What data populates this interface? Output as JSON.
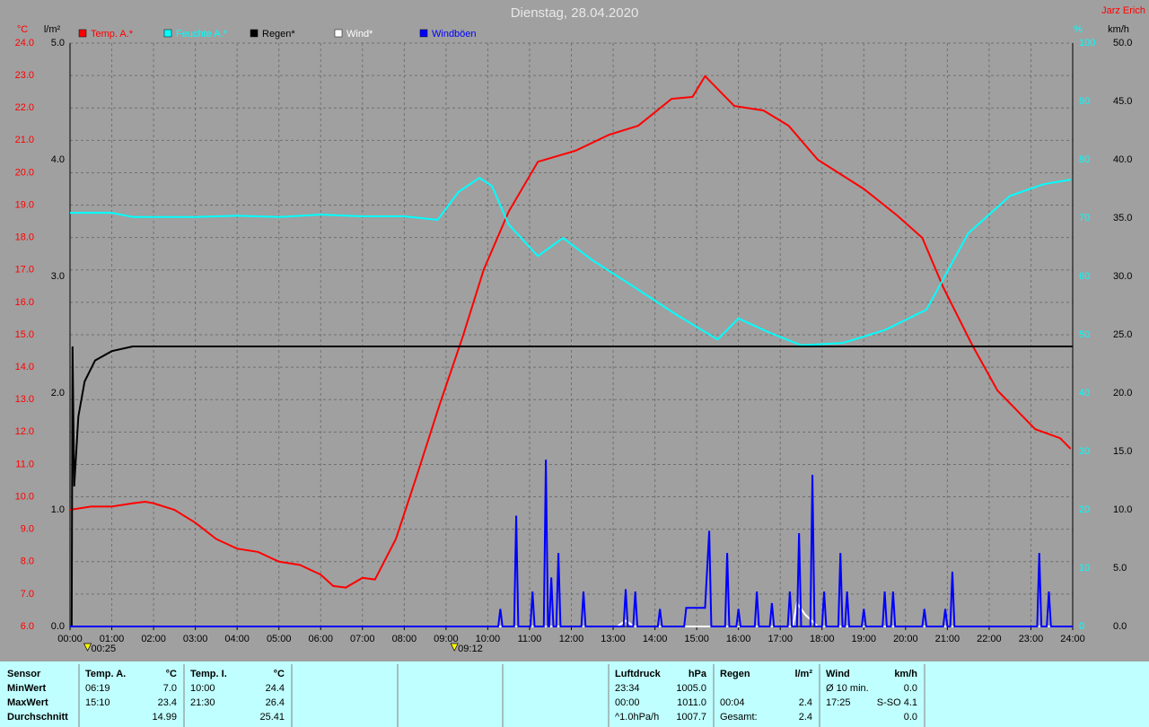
{
  "chart_data": {
    "type": "line",
    "title": "Dienstag, 28.04.2020",
    "author": "Jarz Erich",
    "ylabel": "°C",
    "y3label": "l/m²",
    "y2label": "%",
    "y4label": "km/h",
    "xlim": [
      0,
      24
    ],
    "xticks": [
      {
        "value": 0,
        "label": "00:00"
      },
      {
        "value": 1,
        "label": "01:00"
      },
      {
        "value": 2,
        "label": "02:00"
      },
      {
        "value": 3,
        "label": "03:00"
      },
      {
        "value": 4,
        "label": "04:00"
      },
      {
        "value": 5,
        "label": "05:00"
      },
      {
        "value": 6,
        "label": "06:00"
      },
      {
        "value": 7,
        "label": "07:00"
      },
      {
        "value": 8,
        "label": "08:00"
      },
      {
        "value": 9,
        "label": "09:00"
      },
      {
        "value": 10,
        "label": "10:00"
      },
      {
        "value": 11,
        "label": "11:00"
      },
      {
        "value": 12,
        "label": "12:00"
      },
      {
        "value": 13,
        "label": "13:00"
      },
      {
        "value": 14,
        "label": "14:00"
      },
      {
        "value": 15,
        "label": "15:00"
      },
      {
        "value": 16,
        "label": "16:00"
      },
      {
        "value": 17,
        "label": "17:00"
      },
      {
        "value": 18,
        "label": "18:00"
      },
      {
        "value": 19,
        "label": "19:00"
      },
      {
        "value": 20,
        "label": "20:00"
      },
      {
        "value": 21,
        "label": "21:00"
      },
      {
        "value": 22,
        "label": "22:00"
      },
      {
        "value": 23,
        "label": "23:00"
      },
      {
        "value": 24,
        "label": "24:00"
      }
    ],
    "ylim": [
      6,
      24
    ],
    "yticks": [
      {
        "value": 24,
        "label": "24.0"
      },
      {
        "value": 23,
        "label": "23.0"
      },
      {
        "value": 22,
        "label": "22.0"
      },
      {
        "value": 21,
        "label": "21.0"
      },
      {
        "value": 20,
        "label": "20.0"
      },
      {
        "value": 19,
        "label": "19.0"
      },
      {
        "value": 18,
        "label": "18.0"
      },
      {
        "value": 17,
        "label": "17.0"
      },
      {
        "value": 16,
        "label": "16.0"
      },
      {
        "value": 15,
        "label": "15.0"
      },
      {
        "value": 14,
        "label": "14.0"
      },
      {
        "value": 13,
        "label": "13.0"
      },
      {
        "value": 12,
        "label": "12.0"
      },
      {
        "value": 11,
        "label": "11.0"
      },
      {
        "value": 10,
        "label": "10.0"
      },
      {
        "value": 9,
        "label": "9.0"
      },
      {
        "value": 8,
        "label": "8.0"
      },
      {
        "value": 7,
        "label": "7.0"
      },
      {
        "value": 6,
        "label": "6.0"
      }
    ],
    "y3lim": [
      0,
      5
    ],
    "y3ticks": [
      {
        "value": 5,
        "label": "5.0"
      },
      {
        "value": 4,
        "label": "4.0"
      },
      {
        "value": 3,
        "label": "3.0"
      },
      {
        "value": 2,
        "label": "2.0"
      },
      {
        "value": 1,
        "label": "1.0"
      },
      {
        "value": 0,
        "label": "0.0"
      }
    ],
    "y2lim": [
      0,
      100
    ],
    "y2ticks": [
      100,
      90,
      80,
      70,
      60,
      50,
      40,
      30,
      20,
      10,
      0
    ],
    "y4lim": [
      0,
      50
    ],
    "y4ticks": [
      {
        "value": 50,
        "label": "50.0"
      },
      {
        "value": 45,
        "label": "45.0"
      },
      {
        "value": 40,
        "label": "40.0"
      },
      {
        "value": 35,
        "label": "35.0"
      },
      {
        "value": 30,
        "label": "30.0"
      },
      {
        "value": 25,
        "label": "25.0"
      },
      {
        "value": 20,
        "label": "20.0"
      },
      {
        "value": 15,
        "label": "15.0"
      },
      {
        "value": 10,
        "label": "10.0"
      },
      {
        "value": 5,
        "label": "5.0"
      },
      {
        "value": 0,
        "label": "0.0"
      }
    ],
    "grid": true,
    "series": [
      {
        "name": "Temp. A.*",
        "color": "#ff0000",
        "axis": "y",
        "x": [
          0,
          0.5,
          1.0,
          1.5,
          1.8,
          2.0,
          2.5,
          3.0,
          3.5,
          4.0,
          4.5,
          5.0,
          5.5,
          6.0,
          6.3,
          6.6,
          7.0,
          7.3,
          7.8,
          8.3,
          8.85,
          9.4,
          9.9,
          10.5,
          11.2,
          12.1,
          12.9,
          13.6,
          14.4,
          14.9,
          15.2,
          15.9,
          16.6,
          17.2,
          17.9,
          19.0,
          19.8,
          20.4,
          20.9,
          21.6,
          22.2,
          23.1,
          23.7,
          23.95
        ],
        "values": [
          9.6,
          9.7,
          9.7,
          9.8,
          9.85,
          9.8,
          9.6,
          9.2,
          8.7,
          8.4,
          8.3,
          8.0,
          7.9,
          7.6,
          7.25,
          7.2,
          7.5,
          7.45,
          8.7,
          10.65,
          12.86,
          14.94,
          17.0,
          18.8,
          20.34,
          20.68,
          21.17,
          21.45,
          22.28,
          22.34,
          22.98,
          22.06,
          21.92,
          21.45,
          20.4,
          19.5,
          18.68,
          17.99,
          16.47,
          14.67,
          13.28,
          12.09,
          11.81,
          11.48
        ]
      },
      {
        "name": "Feuchte A.*",
        "color": "#00ffff",
        "axis": "y2",
        "x": [
          0,
          1.0,
          1.5,
          3.0,
          4.0,
          5.0,
          6.0,
          7.0,
          8.0,
          8.8,
          9.3,
          9.8,
          10.1,
          10.5,
          11.2,
          11.8,
          12.5,
          13.5,
          14.5,
          15.5,
          16.0,
          16.7,
          17.5,
          18.5,
          19.5,
          20.5,
          21.5,
          22.5,
          23.3,
          23.95
        ],
        "values": [
          70.9,
          70.9,
          70.2,
          70.2,
          70.4,
          70.2,
          70.6,
          70.3,
          70.3,
          69.7,
          74.5,
          76.9,
          75.5,
          68.9,
          63.5,
          66.6,
          62.8,
          58.2,
          53.5,
          49.2,
          52.8,
          50.5,
          48.2,
          48.6,
          50.8,
          54.3,
          67.4,
          73.8,
          75.8,
          76.6
        ]
      },
      {
        "name": "Regen*",
        "color": "#000000",
        "axis": "y3",
        "x": [
          0,
          0.04,
          0.06,
          0.1,
          0.2,
          0.35,
          0.6,
          1.0,
          1.5,
          24
        ],
        "values": [
          0,
          0,
          2.4,
          1.2,
          1.8,
          2.1,
          2.28,
          2.36,
          2.4,
          2.4
        ]
      },
      {
        "name": "Wind*",
        "color": "#ffffff",
        "axis": "y4",
        "x": [
          0,
          13.1,
          13.3,
          13.5,
          17.3,
          17.4,
          17.6,
          17.9,
          24
        ],
        "values": [
          0,
          0,
          0.5,
          0,
          0,
          2,
          1,
          0,
          0
        ]
      },
      {
        "name": "Windböen",
        "color": "#0000ff",
        "axis": "y4",
        "x": [
          0,
          10.25,
          10.3,
          10.35,
          10.63,
          10.68,
          10.73,
          11.02,
          11.07,
          11.12,
          11.34,
          11.39,
          11.44,
          11.47,
          11.52,
          11.57,
          11.64,
          11.69,
          11.74,
          12.24,
          12.29,
          12.34,
          13.25,
          13.3,
          13.35,
          13.48,
          13.53,
          13.58,
          14.07,
          14.12,
          14.17,
          14.7,
          14.75,
          15.2,
          15.3,
          15.35,
          15.68,
          15.73,
          15.78,
          15.95,
          16.0,
          16.05,
          16.39,
          16.44,
          16.49,
          16.75,
          16.8,
          16.85,
          17.18,
          17.23,
          17.28,
          17.4,
          17.45,
          17.5,
          17.72,
          17.77,
          17.82,
          18.0,
          18.05,
          18.1,
          18.39,
          18.44,
          18.49,
          18.55,
          18.6,
          18.65,
          18.95,
          19.0,
          19.05,
          19.45,
          19.5,
          19.55,
          19.65,
          19.7,
          19.75,
          20.4,
          20.45,
          20.5,
          20.9,
          20.95,
          21.0,
          21.07,
          21.12,
          21.17,
          23.15,
          23.2,
          23.25,
          23.38,
          23.43,
          23.48,
          24
        ],
        "values": [
          0,
          0,
          1.5,
          0,
          0,
          9.5,
          0,
          0,
          3,
          0,
          0,
          14.3,
          0,
          0,
          4.2,
          0,
          0,
          6.3,
          0,
          0,
          3,
          0,
          0,
          3.2,
          0,
          0,
          3,
          0,
          0,
          1.5,
          0,
          0,
          1.6,
          1.6,
          8.2,
          0,
          0,
          6.3,
          0,
          0,
          1.5,
          0,
          0,
          3,
          0,
          0,
          2,
          0,
          0,
          3,
          0,
          0,
          8,
          0,
          0,
          13,
          0,
          0,
          3,
          0,
          0,
          6.3,
          0,
          0,
          3,
          0,
          0,
          1.5,
          0,
          0,
          3,
          0,
          0,
          3,
          0,
          0,
          1.5,
          0,
          0,
          1.5,
          0,
          0,
          4.7,
          0,
          0,
          6.3,
          0,
          0,
          3,
          0,
          0
        ]
      }
    ],
    "markers": [
      {
        "x": 0.42,
        "label": "00:25"
      },
      {
        "x": 9.2,
        "label": "09:12"
      }
    ]
  },
  "table": {
    "sensor": {
      "header": "Sensor",
      "rows": [
        "MinWert",
        "MaxWert",
        "Durchschnitt"
      ]
    },
    "columns": [
      {
        "header": "Temp. A.",
        "unit": "°C",
        "rows": [
          [
            "06:19",
            "7.0"
          ],
          [
            "15:10",
            "23.4"
          ],
          [
            "14.99"
          ]
        ]
      },
      {
        "header": "Temp. I.",
        "unit": "°C",
        "rows": [
          [
            "10:00",
            "24.4"
          ],
          [
            "21:30",
            "26.4"
          ],
          [
            "25.41"
          ]
        ]
      },
      {
        "header": "Luftdruck",
        "unit": "hPa",
        "rows": [
          [
            "23:34",
            "1005.0"
          ],
          [
            "00:00",
            "1011.0"
          ],
          [
            "^1.0hPa/h",
            "1007.7"
          ]
        ]
      },
      {
        "header": "Regen",
        "unit": "l/m²",
        "rows": [
          [],
          [
            "00:04",
            "2.4"
          ],
          [
            "Gesamt:",
            "2.4"
          ]
        ]
      },
      {
        "header": "Wind",
        "unit": "km/h",
        "rows": [
          [
            "Ø 10 min.",
            "0.0"
          ],
          [
            "17:25",
            "S-SO 4.1"
          ],
          [
            "0.0"
          ]
        ]
      }
    ]
  }
}
